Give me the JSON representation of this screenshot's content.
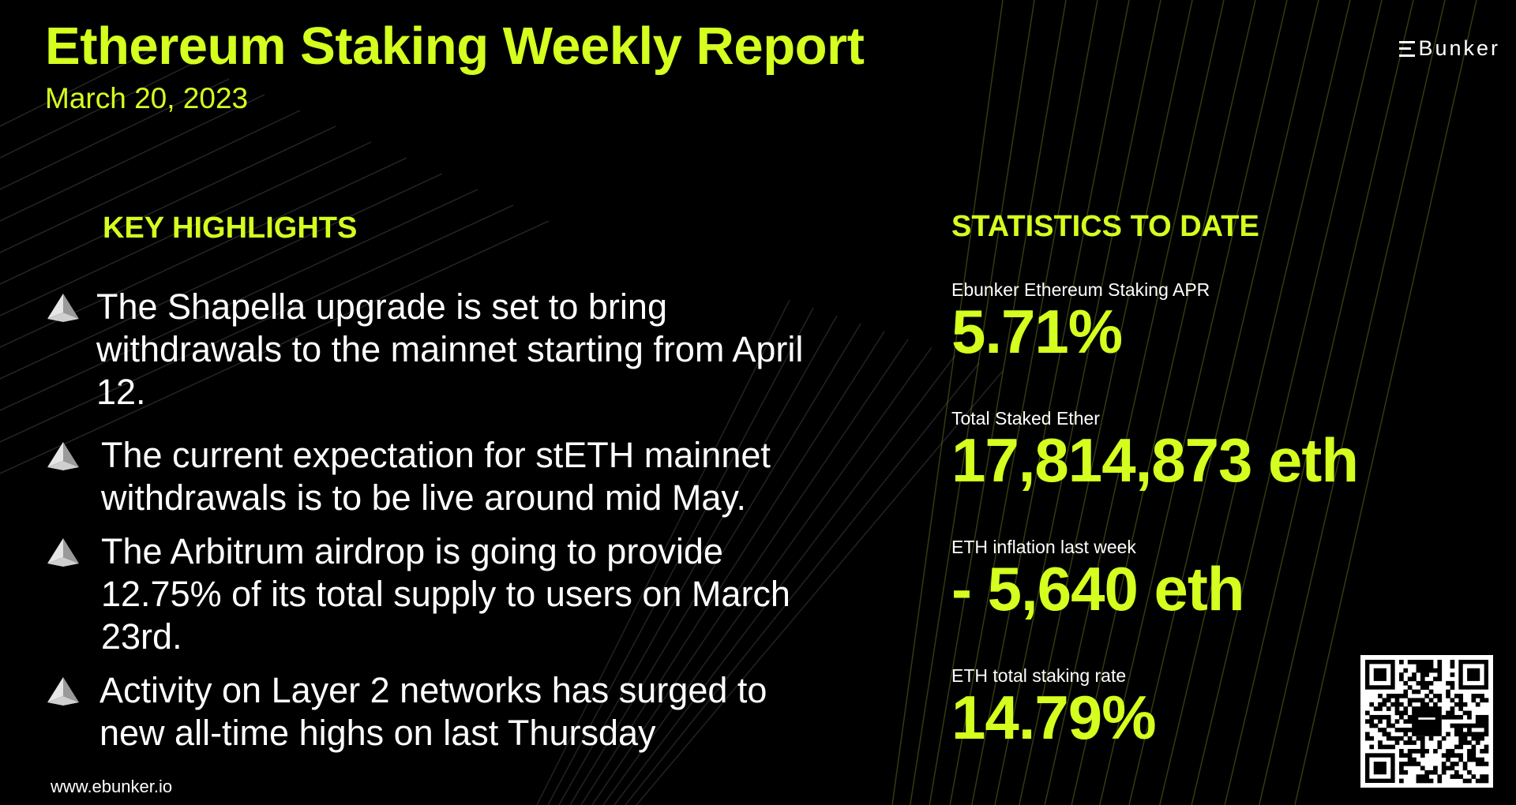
{
  "header": {
    "title": "Ethereum Staking Weekly Report",
    "date": "March 20, 2023",
    "logo_text": "Bunker"
  },
  "highlights": {
    "heading": "KEY HIGHLIGHTS",
    "items": [
      "The Shapella upgrade is set to bring withdrawals to the mainnet starting from April 12.",
      "The current expectation for stETH mainnet withdrawals is to be live around mid May.",
      "The Arbitrum airdrop is going to provide 12.75% of its total supply to users on March 23rd.",
      "Activity on Layer 2 networks has surged to new all-time highs on last Thursday"
    ]
  },
  "statistics": {
    "heading": "STATISTICS TO DATE",
    "items": [
      {
        "label": "Ebunker Ethereum Staking APR",
        "value": "5.71%"
      },
      {
        "label": "Total Staked Ether",
        "value": "17,814,873 eth"
      },
      {
        "label": "ETH inflation last week",
        "value": "- 5,640 eth"
      },
      {
        "label": "ETH total staking rate",
        "value": "14.79%"
      }
    ]
  },
  "footer": {
    "website": "www.ebunker.io"
  },
  "colors": {
    "accent": "#d4ff1f",
    "background": "#000000",
    "text": "#ffffff"
  }
}
